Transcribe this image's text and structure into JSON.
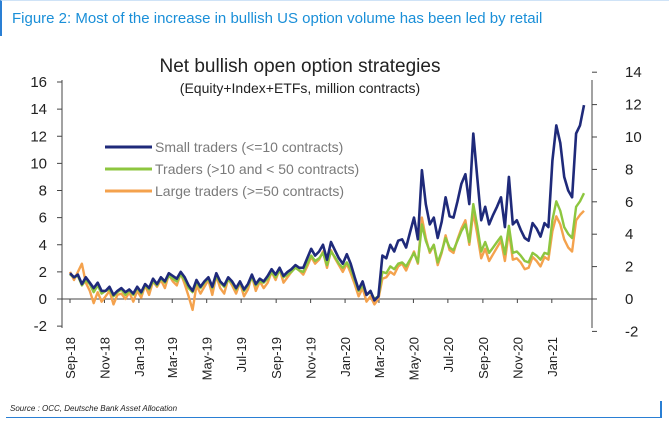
{
  "figure": {
    "title": "Figure 2: Most of the increase in bullish US option volume has been led by retail",
    "source": "Source : OCC, Deutsche Bank Asset Allocation",
    "accent_color": "#2a7fd4"
  },
  "chart_data": {
    "type": "line",
    "title": "Net bullish open option strategies",
    "subtitle": "(Equity+Index+ETFs, million contracts)",
    "xlabel": "",
    "ylabel": "",
    "ylim": [
      -2,
      16
    ],
    "y_ticks": [
      -2,
      0,
      2,
      4,
      6,
      8,
      10,
      12,
      14,
      16
    ],
    "y2lim": [
      -2,
      14
    ],
    "y2_ticks": [
      -2,
      0,
      2,
      4,
      6,
      8,
      10,
      12,
      14
    ],
    "x_tick_labels": [
      "Sep-18",
      "Nov-18",
      "Jan-19",
      "Mar-19",
      "May-19",
      "Jul-19",
      "Sep-19",
      "Nov-19",
      "Jan-20",
      "Mar-20",
      "May-20",
      "Jul-20",
      "Sep-20",
      "Nov-20",
      "Jan-21"
    ],
    "x_start": "2018-09-01",
    "grid": false,
    "legend_position": "upper-left",
    "series": [
      {
        "name": "Small traders (<=10 contracts)",
        "color": "#1f2a7a",
        "values": [
          1.9,
          1.6,
          1.8,
          1.1,
          1.6,
          1.2,
          0.8,
          1.2,
          0.6,
          0.6,
          0.9,
          0.3,
          0.6,
          0.8,
          0.5,
          0.7,
          0.4,
          0.9,
          0.5,
          1.1,
          0.8,
          1.5,
          1.1,
          1.6,
          1.3,
          1.9,
          1.7,
          1.5,
          2.0,
          1.6,
          1.0,
          0.6,
          1.4,
          0.9,
          1.3,
          1.6,
          0.9,
          1.9,
          1.3,
          1.0,
          1.6,
          1.3,
          0.8,
          1.3,
          0.7,
          1.1,
          1.8,
          1.1,
          1.5,
          1.3,
          1.7,
          2.2,
          1.8,
          2.3,
          1.7,
          2.0,
          2.2,
          2.5,
          2.3,
          2.3,
          3.0,
          3.7,
          3.2,
          3.5,
          4.0,
          2.9,
          4.2,
          3.6,
          3.0,
          2.6,
          3.3,
          2.6,
          1.6,
          0.7,
          1.3,
          0.3,
          0.6,
          -0.1,
          0.2,
          3.2,
          3.0,
          4.0,
          3.5,
          4.3,
          4.4,
          3.8,
          4.9,
          6.0,
          4.4,
          9.5,
          7.0,
          5.5,
          6.0,
          4.5,
          5.7,
          7.5,
          6.1,
          6.0,
          7.2,
          8.5,
          9.2,
          7.0,
          12.2,
          9.0,
          5.8,
          6.8,
          5.5,
          6.2,
          6.8,
          7.5,
          5.3,
          9.0,
          5.5,
          5.8,
          5.1,
          4.5,
          4.3,
          5.6,
          5.2,
          4.6,
          5.6,
          5.3,
          10.2,
          12.8,
          11.5,
          9.0,
          8.0,
          7.5,
          12.2,
          12.8,
          14.3
        ]
      },
      {
        "name": "Traders (>10 and < 50 contracts)",
        "color": "#8dc63f",
        "values": [
          1.8,
          1.6,
          1.7,
          1.0,
          1.4,
          1.1,
          0.5,
          1.0,
          0.4,
          0.6,
          0.7,
          0.2,
          0.5,
          0.7,
          0.3,
          0.6,
          0.3,
          0.8,
          0.4,
          1.0,
          0.7,
          1.3,
          1.0,
          1.5,
          1.2,
          1.7,
          1.5,
          1.3,
          1.8,
          1.4,
          0.8,
          0.5,
          1.2,
          0.8,
          1.2,
          1.5,
          0.8,
          1.7,
          1.2,
          0.9,
          1.4,
          1.2,
          0.7,
          1.2,
          0.6,
          1.0,
          1.6,
          1.0,
          1.3,
          1.2,
          1.5,
          2.0,
          1.6,
          2.1,
          1.6,
          1.8,
          2.0,
          2.3,
          2.1,
          2.0,
          2.6,
          3.2,
          2.8,
          3.0,
          3.4,
          2.5,
          3.5,
          3.1,
          2.6,
          2.3,
          2.7,
          2.2,
          1.4,
          0.6,
          1.0,
          0.3,
          0.5,
          0.0,
          0.2,
          2.0,
          1.9,
          2.4,
          2.2,
          2.6,
          2.7,
          2.4,
          2.9,
          3.4,
          2.7,
          5.5,
          4.3,
          3.5,
          4.0,
          2.7,
          3.5,
          4.5,
          3.8,
          3.6,
          4.3,
          5.0,
          5.5,
          4.2,
          7.0,
          5.4,
          3.5,
          4.2,
          3.4,
          3.8,
          4.2,
          4.6,
          3.3,
          5.4,
          3.4,
          3.5,
          3.2,
          2.8,
          2.7,
          3.4,
          3.2,
          2.9,
          3.4,
          3.3,
          5.8,
          7.2,
          6.5,
          5.3,
          4.8,
          4.5,
          6.8,
          7.2,
          7.8
        ]
      },
      {
        "name": "Large traders (>=50 contracts)",
        "color": "#f4a24d",
        "values": [
          2.0,
          1.4,
          2.0,
          2.6,
          1.2,
          0.6,
          -0.3,
          0.5,
          -0.2,
          0.2,
          0.6,
          -0.4,
          0.3,
          0.4,
          0.0,
          0.5,
          -0.2,
          0.6,
          0.1,
          1.0,
          0.3,
          1.3,
          0.9,
          1.4,
          0.8,
          1.8,
          1.3,
          1.0,
          1.9,
          1.1,
          0.2,
          -0.8,
          1.0,
          0.4,
          0.9,
          1.4,
          0.3,
          1.7,
          0.8,
          0.4,
          1.5,
          1.0,
          0.4,
          1.2,
          0.2,
          0.7,
          1.7,
          0.6,
          1.3,
          0.8,
          1.2,
          2.0,
          1.4,
          2.2,
          1.2,
          1.6,
          2.0,
          2.4,
          2.1,
          1.8,
          2.4,
          3.1,
          2.6,
          2.9,
          3.5,
          2.3,
          3.6,
          3.0,
          2.5,
          2.0,
          2.6,
          1.9,
          1.1,
          0.2,
          0.8,
          -0.2,
          0.2,
          -0.4,
          0.0,
          1.5,
          1.6,
          2.0,
          1.8,
          2.4,
          2.6,
          2.1,
          2.8,
          3.5,
          2.6,
          6.0,
          4.5,
          3.4,
          4.0,
          2.5,
          3.4,
          4.7,
          3.6,
          3.4,
          4.4,
          5.2,
          5.8,
          4.0,
          6.4,
          4.8,
          3.0,
          3.7,
          2.8,
          3.3,
          3.8,
          4.3,
          2.8,
          5.0,
          2.9,
          3.0,
          2.7,
          2.2,
          2.3,
          3.1,
          2.8,
          2.4,
          3.1,
          2.9,
          5.0,
          6.1,
          5.5,
          4.4,
          3.8,
          3.5,
          5.8,
          6.2,
          6.5
        ]
      }
    ]
  }
}
